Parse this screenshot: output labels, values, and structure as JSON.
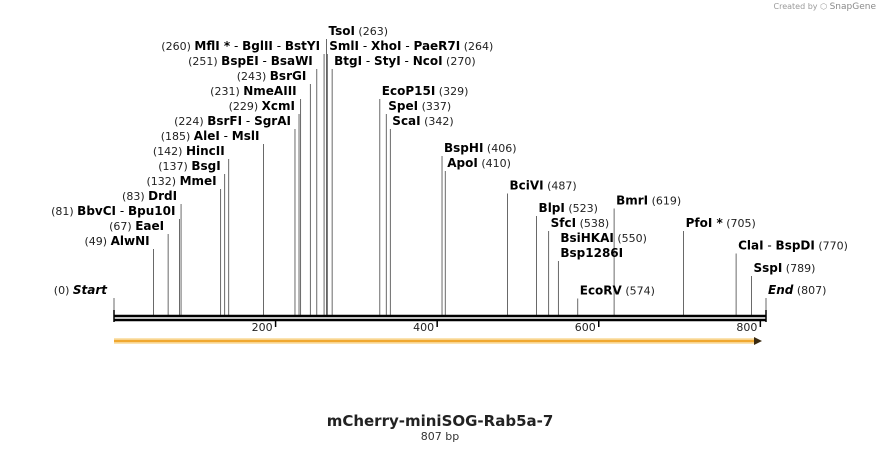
{
  "header": {
    "credit_prefix": "Created by",
    "brand_icon": "snapgene-logo-icon",
    "brand": "SnapGene"
  },
  "map": {
    "title": "mCherry-miniSOG-Rab5a-7",
    "length_label": "807 bp",
    "length": 807,
    "ticks": [
      200,
      400,
      600,
      800
    ],
    "start": {
      "label": "Start",
      "pos": 0
    },
    "end": {
      "label": "End",
      "pos": 807
    },
    "feature": {
      "name": "orf-arrow",
      "start": 0,
      "end": 807,
      "color": "#f0a830",
      "direction": "forward"
    }
  },
  "sites": [
    {
      "pos": 49,
      "names": [
        "AlwNI"
      ],
      "row": 10,
      "side": "left"
    },
    {
      "pos": 67,
      "names": [
        "EaeI"
      ],
      "row": 9,
      "side": "left"
    },
    {
      "pos": 81,
      "names": [
        "BbvCI",
        "Bpu10I"
      ],
      "row": 8,
      "side": "left"
    },
    {
      "pos": 83,
      "names": [
        "DrdI"
      ],
      "row": 7,
      "side": "left"
    },
    {
      "pos": 132,
      "names": [
        "MmeI"
      ],
      "row": 6,
      "side": "left"
    },
    {
      "pos": 137,
      "names": [
        "BsgI"
      ],
      "row": 5,
      "side": "left"
    },
    {
      "pos": 142,
      "names": [
        "HincII"
      ],
      "row": 4,
      "side": "left"
    },
    {
      "pos": 185,
      "names": [
        "AleI",
        "MslI"
      ],
      "row": 3,
      "side": "left"
    },
    {
      "pos": 224,
      "names": [
        "BsrFI",
        "SgrAI"
      ],
      "row": 2,
      "side": "left"
    },
    {
      "pos": 229,
      "names": [
        "XcmI"
      ],
      "row": 1,
      "side": "left"
    },
    {
      "pos": 231,
      "names": [
        "NmeAIII"
      ],
      "row": 0,
      "side": "left"
    },
    {
      "pos": 243,
      "names": [
        "BsrGI"
      ],
      "row": -1,
      "side": "left"
    },
    {
      "pos": 251,
      "names": [
        "BspEI",
        "BsaWI"
      ],
      "row": -2,
      "side": "left"
    },
    {
      "pos": 260,
      "names": [
        "MflI *",
        "BglII",
        "BstYI"
      ],
      "row": -3,
      "side": "left"
    },
    {
      "pos": 263,
      "names": [
        "TsoI"
      ],
      "row": -4,
      "side": "right"
    },
    {
      "pos": 264,
      "names": [
        "SmlI",
        "XhoI",
        "PaeR7I"
      ],
      "row": -3,
      "side": "right"
    },
    {
      "pos": 270,
      "names": [
        "BtgI",
        "StyI",
        "NcoI"
      ],
      "row": -2,
      "side": "right"
    },
    {
      "pos": 329,
      "names": [
        "EcoP15I"
      ],
      "row": 0,
      "side": "right"
    },
    {
      "pos": 337,
      "names": [
        "SpeI"
      ],
      "row": 1,
      "side": "right"
    },
    {
      "pos": 342,
      "names": [
        "ScaI"
      ],
      "row": 2,
      "side": "right"
    },
    {
      "pos": 406,
      "names": [
        "BspHI"
      ],
      "row": 3.8,
      "side": "right"
    },
    {
      "pos": 410,
      "names": [
        "ApoI"
      ],
      "row": 4.8,
      "side": "right"
    },
    {
      "pos": 487,
      "names": [
        "BciVI"
      ],
      "row": 6.3,
      "side": "right"
    },
    {
      "pos": 523,
      "names": [
        "BlpI"
      ],
      "row": 7.8,
      "side": "right"
    },
    {
      "pos": 538,
      "names": [
        "SfcI"
      ],
      "row": 8.8,
      "side": "right"
    },
    {
      "pos": 550,
      "names": [
        "BsiHKAI",
        "Bsp1286I"
      ],
      "row": 10.8,
      "side": "right",
      "stack": true
    },
    {
      "pos": 574,
      "names": [
        "EcoRV"
      ],
      "row": 13.3,
      "side": "right"
    },
    {
      "pos": 619,
      "names": [
        "BmrI"
      ],
      "row": 7.3,
      "side": "right"
    },
    {
      "pos": 705,
      "names": [
        "PfoI *"
      ],
      "row": 8.8,
      "side": "right"
    },
    {
      "pos": 770,
      "names": [
        "ClaI",
        "BspDI"
      ],
      "row": 10.3,
      "side": "right"
    },
    {
      "pos": 789,
      "names": [
        "SspI"
      ],
      "row": 11.8,
      "side": "right"
    }
  ]
}
